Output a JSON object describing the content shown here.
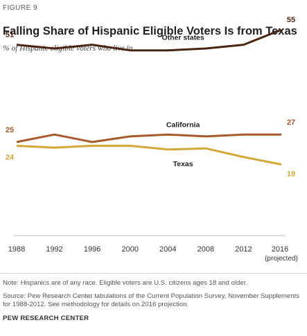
{
  "figure_label": "FIGURE 9",
  "note": "Note: Hispanics are of any race. Eligible voters are U.S. citizens ages 18 and older.",
  "source": "Source: Pew Research Center tabulations of the Current Population Survey, November Supplements for 1988-2012. See methodology for details on 2016 projection.",
  "organization": "PEW RESEARCH CENTER",
  "colors": {
    "other_states": "#4a2412",
    "california": "#a8582a",
    "texas": "#d3a836"
  },
  "chart_data": {
    "type": "line",
    "title": "Falling Share of Hispanic Eligible Voters Is from Texas",
    "subtitle": "% of Hispanic eligible voters who live in ...",
    "x": [
      "1988",
      "1992",
      "1996",
      "2000",
      "2004",
      "2008",
      "2012",
      "2016"
    ],
    "x_sublabel": "(projected)",
    "ylim": [
      0,
      60
    ],
    "grid": false,
    "series": [
      {
        "name": "Other states",
        "values": [
          51,
          50,
          51,
          49.5,
          49.5,
          50,
          51,
          55
        ],
        "start_label": "51",
        "end_label": "55"
      },
      {
        "name": "California",
        "values": [
          25,
          27,
          25,
          26.5,
          27,
          26.5,
          27,
          27
        ],
        "start_label": "25",
        "end_label": "27"
      },
      {
        "name": "Texas",
        "values": [
          24,
          23.5,
          24,
          24,
          23,
          23.3,
          21,
          19
        ],
        "start_label": "24",
        "end_label": "19"
      }
    ]
  }
}
